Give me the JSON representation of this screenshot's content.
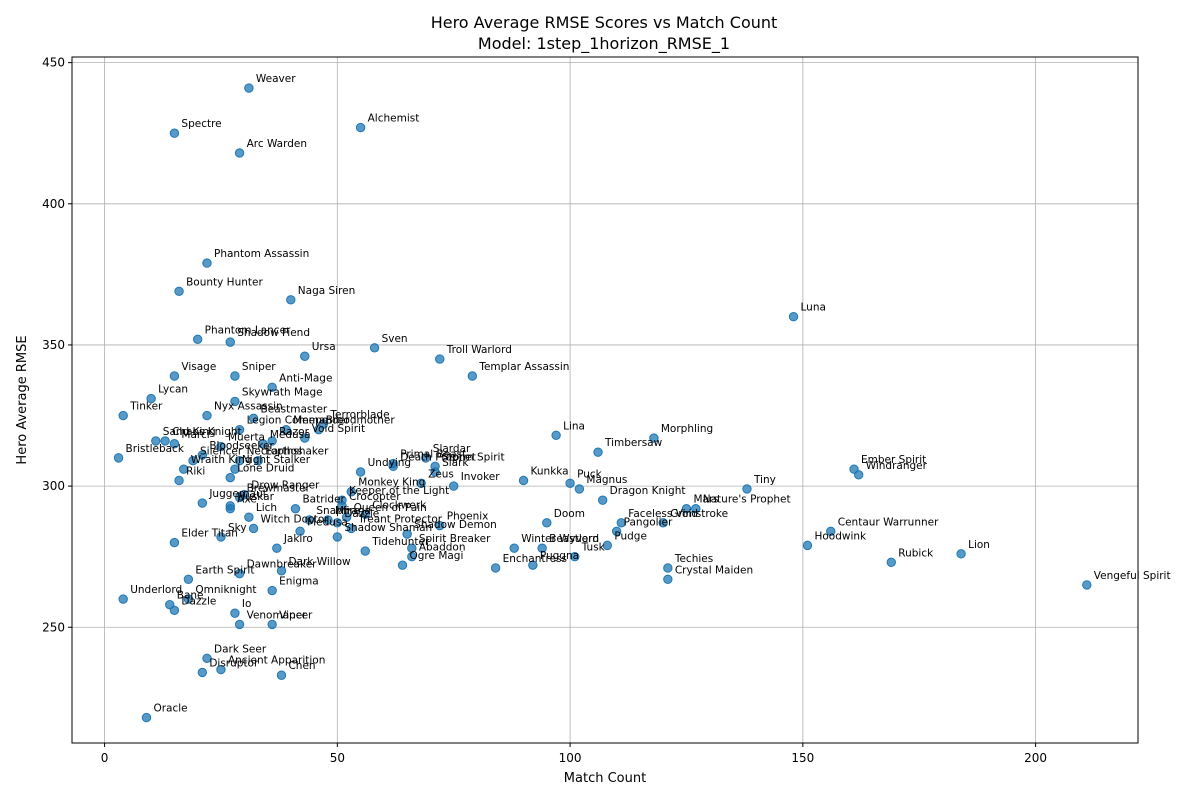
{
  "chart_data": {
    "type": "scatter",
    "title_line1": "Hero Average RMSE Scores vs Match Count",
    "title_line2": "Model: 1step_1horizon_RMSE_1",
    "xlabel": "Match Count",
    "ylabel": "Hero Average RMSE",
    "xlim": [
      -7,
      222
    ],
    "ylim": [
      209,
      452
    ],
    "xticks": [
      0,
      50,
      100,
      150,
      200
    ],
    "yticks": [
      250,
      300,
      350,
      400,
      450
    ],
    "grid": true,
    "points": [
      {
        "name": "Weaver",
        "x": 31,
        "y": 441
      },
      {
        "name": "Alchemist",
        "x": 55,
        "y": 427
      },
      {
        "name": "Spectre",
        "x": 15,
        "y": 425
      },
      {
        "name": "Arc Warden",
        "x": 29,
        "y": 418
      },
      {
        "name": "Phantom Assassin",
        "x": 22,
        "y": 379
      },
      {
        "name": "Bounty Hunter",
        "x": 16,
        "y": 369
      },
      {
        "name": "Naga Siren",
        "x": 40,
        "y": 366
      },
      {
        "name": "Luna",
        "x": 148,
        "y": 360
      },
      {
        "name": "Phantom Lancer",
        "x": 20,
        "y": 352
      },
      {
        "name": "Shadow Fiend",
        "x": 27,
        "y": 351
      },
      {
        "name": "Sven",
        "x": 58,
        "y": 349
      },
      {
        "name": "Ursa",
        "x": 43,
        "y": 346
      },
      {
        "name": "Troll Warlord",
        "x": 72,
        "y": 345
      },
      {
        "name": "Visage",
        "x": 15,
        "y": 339
      },
      {
        "name": "Sniper",
        "x": 28,
        "y": 339
      },
      {
        "name": "Templar Assassin",
        "x": 79,
        "y": 339
      },
      {
        "name": "Anti-Mage",
        "x": 36,
        "y": 335
      },
      {
        "name": "Lycan",
        "x": 10,
        "y": 331
      },
      {
        "name": "Skywrath Mage",
        "x": 28,
        "y": 330
      },
      {
        "name": "Tinker",
        "x": 4,
        "y": 325
      },
      {
        "name": "Nyx Assassin",
        "x": 22,
        "y": 325
      },
      {
        "name": "Beastmaster",
        "x": 32,
        "y": 324
      },
      {
        "name": "Terrorblade",
        "x": 47,
        "y": 322
      },
      {
        "name": "Legion Commander",
        "x": 29,
        "y": 320
      },
      {
        "name": "Meepo",
        "x": 39,
        "y": 320
      },
      {
        "name": "Broodmother",
        "x": 46,
        "y": 320
      },
      {
        "name": "Lina",
        "x": 97,
        "y": 318
      },
      {
        "name": "Void Spirit",
        "x": 43,
        "y": 317
      },
      {
        "name": "Morphling",
        "x": 118,
        "y": 317
      },
      {
        "name": "Chaos Knight",
        "x": 13,
        "y": 316
      },
      {
        "name": "Sand King",
        "x": 11,
        "y": 316
      },
      {
        "name": "Marci",
        "x": 15,
        "y": 315
      },
      {
        "name": "Medusa",
        "x": 34,
        "y": 315
      },
      {
        "name": "Muerta",
        "x": 25,
        "y": 314
      },
      {
        "name": "Razor",
        "x": 36,
        "y": 316
      },
      {
        "name": "Timbersaw",
        "x": 106,
        "y": 312
      },
      {
        "name": "Bristleback",
        "x": 3,
        "y": 310
      },
      {
        "name": "Bloodseeker",
        "x": 21,
        "y": 311
      },
      {
        "name": "Slardar",
        "x": 69,
        "y": 310
      },
      {
        "name": "Primal Beast",
        "x": 62,
        "y": 308
      },
      {
        "name": "Storm Spirit",
        "x": 71,
        "y": 307
      },
      {
        "name": "Necrophos",
        "x": 29,
        "y": 309
      },
      {
        "name": "Earthshaker",
        "x": 33,
        "y": 309
      },
      {
        "name": "Silencer",
        "x": 19,
        "y": 309
      },
      {
        "name": "Death Prophet",
        "x": 62,
        "y": 307
      },
      {
        "name": "Ember Spirit",
        "x": 161,
        "y": 306
      },
      {
        "name": "Windranger",
        "x": 162,
        "y": 304
      },
      {
        "name": "Wraith King",
        "x": 17,
        "y": 306
      },
      {
        "name": "Night Stalker",
        "x": 28,
        "y": 306
      },
      {
        "name": "Tiny",
        "x": 138,
        "y": 299
      },
      {
        "name": "Slark",
        "x": 71,
        "y": 305
      },
      {
        "name": "Invoker",
        "x": 75,
        "y": 300
      },
      {
        "name": "Lone Druid",
        "x": 27,
        "y": 303
      },
      {
        "name": "Undying",
        "x": 55,
        "y": 305
      },
      {
        "name": "Kunkka",
        "x": 90,
        "y": 302
      },
      {
        "name": "Puck",
        "x": 100,
        "y": 301
      },
      {
        "name": "Magnus",
        "x": 102,
        "y": 299
      },
      {
        "name": "Riki",
        "x": 16,
        "y": 302
      },
      {
        "name": "Zeus",
        "x": 68,
        "y": 301
      },
      {
        "name": "Dragon Knight",
        "x": 107,
        "y": 295
      },
      {
        "name": "Monkey King",
        "x": 53,
        "y": 298
      },
      {
        "name": "Keeper of the Light",
        "x": 51,
        "y": 295
      },
      {
        "name": "Mars",
        "x": 125,
        "y": 292
      },
      {
        "name": "Drow Ranger",
        "x": 30,
        "y": 297
      },
      {
        "name": "Brewmaster",
        "x": 29,
        "y": 296
      },
      {
        "name": "Huskar",
        "x": 27,
        "y": 293
      },
      {
        "name": "Juggernaut",
        "x": 21,
        "y": 294
      },
      {
        "name": "Axe",
        "x": 27,
        "y": 292
      },
      {
        "name": "Crocopter",
        "x": 51,
        "y": 293
      },
      {
        "name": "Nature's Prophet",
        "x": 127,
        "y": 292
      },
      {
        "name": "Batrider",
        "x": 41,
        "y": 292
      },
      {
        "name": "Clockwerk",
        "x": 56,
        "y": 290
      },
      {
        "name": "Lich",
        "x": 31,
        "y": 289
      },
      {
        "name": "Queen of Pain",
        "x": 52,
        "y": 289
      },
      {
        "name": "Doom",
        "x": 95,
        "y": 287
      },
      {
        "name": "Faceless Void",
        "x": 111,
        "y": 287
      },
      {
        "name": "Grimstroke",
        "x": 120,
        "y": 287
      },
      {
        "name": "Dazzle",
        "x": 50,
        "y": 287
      },
      {
        "name": "Mirana",
        "x": 48,
        "y": 288
      },
      {
        "name": "Snapfire",
        "x": 44,
        "y": 288
      },
      {
        "name": "Phoenix",
        "x": 72,
        "y": 286
      },
      {
        "name": "Witch Doctor",
        "x": 32,
        "y": 285
      },
      {
        "name": "Centaur Warrunner",
        "x": 156,
        "y": 284
      },
      {
        "name": "Hoodwink",
        "x": 151,
        "y": 279
      },
      {
        "name": "Treant Protector",
        "x": 53,
        "y": 285
      },
      {
        "name": "Pangolier",
        "x": 110,
        "y": 284
      },
      {
        "name": "Medusa",
        "x": 42,
        "y": 284
      },
      {
        "name": "Shadow Shaman",
        "x": 50,
        "y": 282
      },
      {
        "name": "Shadow Demon",
        "x": 65,
        "y": 283
      },
      {
        "name": "Winter Wyvern",
        "x": 88,
        "y": 278
      },
      {
        "name": "Elder Titan",
        "x": 15,
        "y": 280
      },
      {
        "name": "Sky",
        "x": 25,
        "y": 282
      },
      {
        "name": "Tidehunter",
        "x": 56,
        "y": 277
      },
      {
        "name": "Spirit Breaker",
        "x": 66,
        "y": 278
      },
      {
        "name": "Pudge",
        "x": 108,
        "y": 279
      },
      {
        "name": "Beastlord",
        "x": 94,
        "y": 278
      },
      {
        "name": "Jakiro",
        "x": 37,
        "y": 278
      },
      {
        "name": "Lion",
        "x": 184,
        "y": 276
      },
      {
        "name": "Abaddon",
        "x": 66,
        "y": 275
      },
      {
        "name": "Ogre Magi",
        "x": 64,
        "y": 272
      },
      {
        "name": "Tusk",
        "x": 101,
        "y": 275
      },
      {
        "name": "Puggna",
        "x": 92,
        "y": 272
      },
      {
        "name": "Enchantress",
        "x": 84,
        "y": 271
      },
      {
        "name": "Rubick",
        "x": 169,
        "y": 273
      },
      {
        "name": "Techies",
        "x": 121,
        "y": 271
      },
      {
        "name": "Dark Willow",
        "x": 38,
        "y": 270
      },
      {
        "name": "Dawnbreaker",
        "x": 29,
        "y": 269
      },
      {
        "name": "Crystal Maiden",
        "x": 121,
        "y": 267
      },
      {
        "name": "Earth Spirit",
        "x": 18,
        "y": 267
      },
      {
        "name": "Enigma",
        "x": 36,
        "y": 263
      },
      {
        "name": "Vengeful Spirit",
        "x": 211,
        "y": 265
      },
      {
        "name": "Underlord",
        "x": 4,
        "y": 260
      },
      {
        "name": "Omniknight",
        "x": 18,
        "y": 260
      },
      {
        "name": "Bane",
        "x": 14,
        "y": 258
      },
      {
        "name": "Dazzle",
        "x": 15,
        "y": 256
      },
      {
        "name": "Io",
        "x": 28,
        "y": 255
      },
      {
        "name": "Venomancer",
        "x": 29,
        "y": 251
      },
      {
        "name": "Viper",
        "x": 36,
        "y": 251
      },
      {
        "name": "Dark Seer",
        "x": 22,
        "y": 239
      },
      {
        "name": "Ancient Apparition",
        "x": 25,
        "y": 235
      },
      {
        "name": "Disruptor",
        "x": 21,
        "y": 234
      },
      {
        "name": "Chen",
        "x": 38,
        "y": 233
      },
      {
        "name": "Oracle",
        "x": 9,
        "y": 218
      }
    ]
  },
  "colors": {
    "point": "#1f77b4",
    "grid": "#b0b0b0",
    "text": "#000000"
  }
}
